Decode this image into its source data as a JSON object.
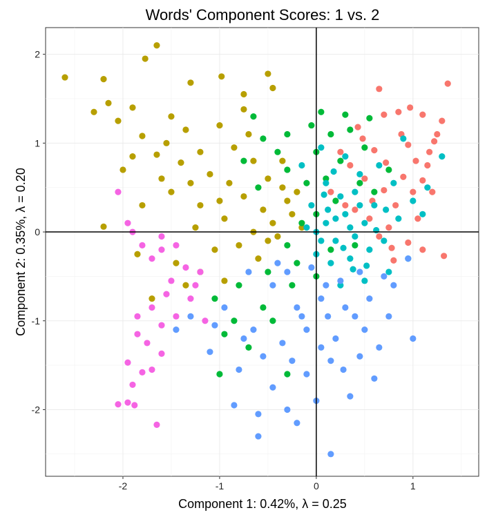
{
  "chart_data": {
    "type": "scatter",
    "title": "Words' Component Scores: 1 vs. 2",
    "xlabel": "Component 1: 0.42%, λ = 0.25",
    "ylabel": "Component 2: 0.35%, λ = 0.20",
    "xlim": [
      -2.8,
      1.68
    ],
    "ylim": [
      -2.75,
      2.3
    ],
    "xticks": [
      -2,
      -1,
      0,
      1
    ],
    "yticks": [
      -2,
      -1,
      0,
      1,
      2
    ],
    "xtick_labels": [
      "-2",
      "-1",
      "0",
      "1"
    ],
    "ytick_labels": [
      "-2",
      "-1",
      "0",
      "1",
      "2"
    ],
    "grid": true,
    "legend": "none",
    "reference_lines": {
      "x": 0,
      "y": 0
    },
    "series": [
      {
        "color": "#F8766D",
        "values": [
          [
            0.65,
            1.61
          ],
          [
            1.36,
            1.67
          ],
          [
            0.7,
            1.32
          ],
          [
            0.85,
            1.35
          ],
          [
            0.97,
            1.4
          ],
          [
            1.1,
            1.32
          ],
          [
            1.3,
            1.25
          ],
          [
            1.25,
            1.1
          ],
          [
            1.17,
            0.9
          ],
          [
            1.03,
            0.8
          ],
          [
            0.9,
            0.62
          ],
          [
            1.1,
            0.58
          ],
          [
            1.2,
            0.45
          ],
          [
            0.82,
            0.3
          ],
          [
            0.7,
            0.47
          ],
          [
            0.6,
            0.92
          ],
          [
            0.95,
            0.98
          ],
          [
            0.35,
            0.75
          ],
          [
            0.43,
            1.18
          ],
          [
            0.25,
            0.9
          ],
          [
            0.15,
            0.45
          ],
          [
            0.4,
            0.25
          ],
          [
            0.55,
            0.15
          ],
          [
            0.65,
            -0.05
          ],
          [
            0.95,
            -0.12
          ],
          [
            1.1,
            -0.2
          ],
          [
            1.32,
            -0.27
          ],
          [
            0.8,
            -0.32
          ],
          [
            0.75,
            0.05
          ],
          [
            1.05,
            0.15
          ],
          [
            1.15,
            0.75
          ],
          [
            0.5,
            0.6
          ],
          [
            0.3,
            0.3
          ],
          [
            0.88,
            1.1
          ],
          [
            1.0,
            0.45
          ],
          [
            0.58,
            0.35
          ],
          [
            0.72,
            0.78
          ],
          [
            1.22,
            1.02
          ],
          [
            0.78,
            -0.18
          ],
          [
            0.48,
            1.05
          ]
        ]
      },
      {
        "color": "#B79F00",
        "values": [
          [
            -2.6,
            1.74
          ],
          [
            -2.2,
            1.72
          ],
          [
            -2.3,
            1.35
          ],
          [
            -1.65,
            2.1
          ],
          [
            -1.77,
            1.95
          ],
          [
            -1.3,
            1.68
          ],
          [
            -0.98,
            1.75
          ],
          [
            -0.75,
            1.55
          ],
          [
            -0.5,
            1.78
          ],
          [
            -1.9,
            1.4
          ],
          [
            -2.05,
            1.25
          ],
          [
            -1.5,
            1.3
          ],
          [
            -1.8,
            1.08
          ],
          [
            -1.65,
            0.87
          ],
          [
            -1.4,
            0.78
          ],
          [
            -1.2,
            0.9
          ],
          [
            -1.0,
            1.2
          ],
          [
            -0.85,
            0.95
          ],
          [
            -0.65,
            0.8
          ],
          [
            -0.5,
            0.6
          ],
          [
            -0.35,
            0.5
          ],
          [
            -0.25,
            0.2
          ],
          [
            -0.45,
            0.1
          ],
          [
            -0.65,
            0.0
          ],
          [
            -0.95,
            0.15
          ],
          [
            -1.2,
            0.3
          ],
          [
            -1.5,
            0.45
          ],
          [
            -1.8,
            0.3
          ],
          [
            -2.2,
            0.06
          ],
          [
            -1.85,
            -0.25
          ],
          [
            -1.45,
            -0.35
          ],
          [
            -1.2,
            -0.45
          ],
          [
            -1.05,
            -0.2
          ],
          [
            -0.8,
            -0.15
          ],
          [
            -0.6,
            -0.3
          ],
          [
            -0.4,
            -0.05
          ],
          [
            -0.15,
            0.05
          ],
          [
            -1.7,
            -0.75
          ],
          [
            -1.35,
            -0.6
          ],
          [
            -0.95,
            -0.55
          ],
          [
            -1.6,
            0.6
          ],
          [
            -1.3,
            0.55
          ],
          [
            -0.75,
            0.4
          ],
          [
            -0.55,
            0.25
          ],
          [
            -0.3,
            0.35
          ],
          [
            -1.1,
            0.65
          ],
          [
            -0.9,
            0.55
          ],
          [
            -2.15,
            1.45
          ],
          [
            -1.55,
            1.0
          ],
          [
            -0.7,
            1.1
          ],
          [
            -0.35,
            0.8
          ],
          [
            -1.9,
            0.85
          ],
          [
            -1.0,
            0.35
          ],
          [
            -0.5,
            -0.1
          ],
          [
            -1.25,
            0.05
          ],
          [
            -0.45,
            1.62
          ],
          [
            -0.75,
            1.38
          ],
          [
            -1.35,
            1.15
          ],
          [
            -2.0,
            0.7
          ],
          [
            -0.2,
            0.45
          ]
        ]
      },
      {
        "color": "#00BA38",
        "values": [
          [
            0.05,
            1.35
          ],
          [
            0.35,
            1.15
          ],
          [
            0.55,
            1.28
          ],
          [
            0.15,
            1.1
          ],
          [
            -0.05,
            1.2
          ],
          [
            -0.3,
            1.1
          ],
          [
            -0.55,
            1.05
          ],
          [
            -0.75,
            0.8
          ],
          [
            -0.6,
            0.5
          ],
          [
            -0.3,
            0.7
          ],
          [
            0.0,
            0.9
          ],
          [
            0.25,
            0.8
          ],
          [
            0.5,
            0.95
          ],
          [
            0.45,
            0.55
          ],
          [
            0.2,
            0.35
          ],
          [
            0.0,
            0.2
          ],
          [
            -0.15,
            0.1
          ],
          [
            -0.3,
            -0.15
          ],
          [
            -0.5,
            -0.45
          ],
          [
            -0.8,
            -0.6
          ],
          [
            -1.05,
            -0.75
          ],
          [
            -0.95,
            -1.15
          ],
          [
            -1.0,
            -1.6
          ],
          [
            -0.7,
            -1.3
          ],
          [
            -0.45,
            -1.0
          ],
          [
            -0.25,
            -0.6
          ],
          [
            0.0,
            -0.5
          ],
          [
            -0.3,
            -1.6
          ],
          [
            0.15,
            -0.2
          ],
          [
            0.6,
            0.45
          ],
          [
            -0.1,
            0.55
          ],
          [
            -0.4,
            0.9
          ],
          [
            0.3,
            1.32
          ],
          [
            0.1,
            0.6
          ],
          [
            -0.2,
            -0.35
          ],
          [
            0.75,
            0.7
          ],
          [
            -0.65,
            1.3
          ],
          [
            0.4,
            -0.15
          ],
          [
            -0.85,
            -1.0
          ],
          [
            -0.55,
            -0.85
          ]
        ]
      },
      {
        "color": "#00BFC4",
        "values": [
          [
            0.0,
            0.0
          ],
          [
            0.1,
            0.1
          ],
          [
            0.2,
            -0.1
          ],
          [
            0.3,
            0.2
          ],
          [
            0.4,
            -0.05
          ],
          [
            0.5,
            0.1
          ],
          [
            0.6,
            0.3
          ],
          [
            0.25,
            0.4
          ],
          [
            0.1,
            0.55
          ],
          [
            -0.05,
            0.3
          ],
          [
            0.0,
            -0.25
          ],
          [
            0.15,
            -0.35
          ],
          [
            0.35,
            -0.3
          ],
          [
            0.55,
            -0.2
          ],
          [
            0.7,
            -0.1
          ],
          [
            0.85,
            0.15
          ],
          [
            1.0,
            0.35
          ],
          [
            1.15,
            0.5
          ],
          [
            1.3,
            0.85
          ],
          [
            0.45,
            0.65
          ],
          [
            0.3,
            0.85
          ],
          [
            0.05,
            0.95
          ],
          [
            -0.15,
            0.75
          ],
          [
            0.8,
            0.55
          ],
          [
            0.95,
            -0.3
          ],
          [
            0.75,
            -0.45
          ],
          [
            0.5,
            -0.55
          ],
          [
            0.25,
            -0.6
          ],
          [
            0.65,
            0.75
          ],
          [
            0.9,
            1.05
          ],
          [
            0.2,
            0.15
          ],
          [
            0.35,
            0.05
          ],
          [
            0.45,
            0.3
          ],
          [
            0.05,
            -0.1
          ],
          [
            0.28,
            -0.18
          ],
          [
            0.62,
            0.02
          ],
          [
            0.4,
            0.45
          ],
          [
            0.12,
            0.25
          ],
          [
            -0.1,
            0.05
          ],
          [
            0.52,
            -0.38
          ],
          [
            0.18,
            0.68
          ],
          [
            0.72,
            0.25
          ],
          [
            1.1,
            0.2
          ],
          [
            0.38,
            -0.42
          ],
          [
            0.08,
            0.42
          ]
        ]
      },
      {
        "color": "#619CFF",
        "values": [
          [
            0.15,
            -2.5
          ],
          [
            -0.6,
            -2.3
          ],
          [
            -0.3,
            -2.0
          ],
          [
            0.0,
            -1.9
          ],
          [
            0.35,
            -1.85
          ],
          [
            0.6,
            -1.65
          ],
          [
            0.45,
            -1.4
          ],
          [
            0.15,
            -1.45
          ],
          [
            -0.1,
            -1.6
          ],
          [
            -0.45,
            -1.75
          ],
          [
            -0.8,
            -1.55
          ],
          [
            -1.1,
            -1.35
          ],
          [
            -1.3,
            -0.95
          ],
          [
            -1.45,
            -1.1
          ],
          [
            -0.95,
            -0.85
          ],
          [
            -0.65,
            -1.1
          ],
          [
            -0.35,
            -1.25
          ],
          [
            -0.1,
            -1.1
          ],
          [
            0.2,
            -1.2
          ],
          [
            0.5,
            -1.1
          ],
          [
            0.75,
            -0.95
          ],
          [
            0.8,
            -0.6
          ],
          [
            0.55,
            -0.75
          ],
          [
            0.3,
            -0.85
          ],
          [
            0.05,
            -0.75
          ],
          [
            -0.2,
            -0.85
          ],
          [
            -0.45,
            -0.6
          ],
          [
            -0.7,
            -0.45
          ],
          [
            -0.3,
            -0.45
          ],
          [
            -0.05,
            -0.4
          ],
          [
            0.25,
            -0.55
          ],
          [
            0.95,
            -0.3
          ],
          [
            1.0,
            -1.2
          ],
          [
            -0.6,
            -2.05
          ],
          [
            -0.2,
            -2.15
          ],
          [
            0.05,
            -1.3
          ],
          [
            0.4,
            -0.95
          ],
          [
            -0.85,
            -1.95
          ],
          [
            -0.15,
            -0.95
          ],
          [
            0.65,
            -1.3
          ],
          [
            -0.55,
            -1.4
          ],
          [
            0.1,
            -0.6
          ],
          [
            -0.4,
            -0.35
          ],
          [
            0.28,
            -1.55
          ],
          [
            -0.75,
            -1.2
          ],
          [
            0.45,
            -0.45
          ],
          [
            -1.05,
            -1.05
          ],
          [
            0.12,
            -0.95
          ],
          [
            -0.25,
            -1.45
          ],
          [
            0.7,
            -0.5
          ]
        ]
      },
      {
        "color": "#F564E3",
        "values": [
          [
            -2.05,
            -1.94
          ],
          [
            -1.95,
            -1.92
          ],
          [
            -1.88,
            -1.95
          ],
          [
            -1.65,
            -2.17
          ],
          [
            -1.9,
            -1.72
          ],
          [
            -1.95,
            -1.47
          ],
          [
            -1.8,
            -1.58
          ],
          [
            -1.7,
            -1.55
          ],
          [
            -1.6,
            -1.37
          ],
          [
            -1.75,
            -1.25
          ],
          [
            -1.85,
            -1.15
          ],
          [
            -1.6,
            -1.05
          ],
          [
            -1.85,
            -0.95
          ],
          [
            -1.7,
            -0.85
          ],
          [
            -1.55,
            -0.7
          ],
          [
            -1.5,
            -0.55
          ],
          [
            -1.35,
            -0.4
          ],
          [
            -1.2,
            -0.45
          ],
          [
            -1.7,
            -0.3
          ],
          [
            -1.8,
            -0.15
          ],
          [
            -1.9,
            0.0
          ],
          [
            -1.95,
            0.1
          ],
          [
            -2.05,
            0.45
          ],
          [
            -1.6,
            -0.05
          ],
          [
            -1.45,
            -0.15
          ],
          [
            -1.6,
            -0.2
          ],
          [
            -1.3,
            -0.75
          ],
          [
            -1.15,
            -1.0
          ],
          [
            -1.25,
            -0.6
          ],
          [
            -1.45,
            -0.95
          ]
        ]
      }
    ]
  }
}
